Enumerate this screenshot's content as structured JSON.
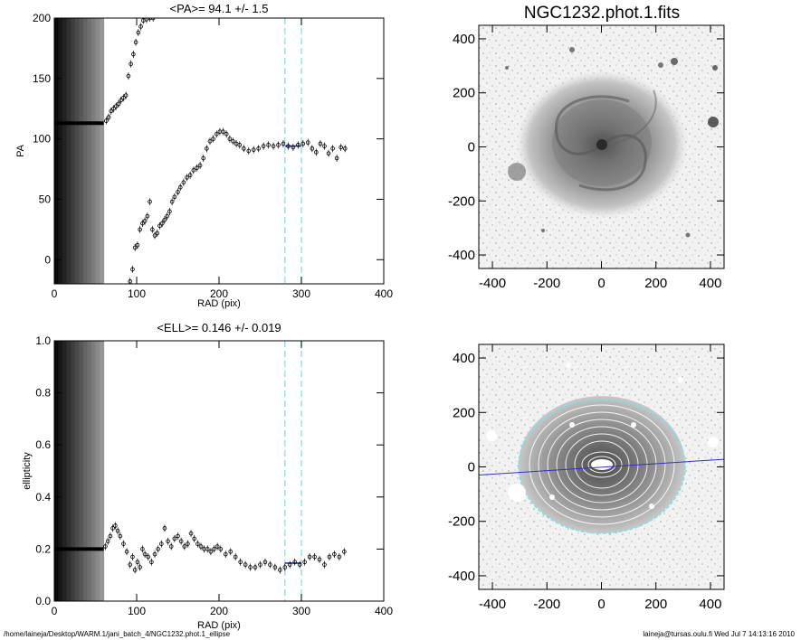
{
  "chart_data": [
    {
      "type": "scatter",
      "title": "<PA>=  94.1 +/-   1.5",
      "xlabel": "RAD (pix)",
      "ylabel": "PA",
      "xlim": [
        0,
        400
      ],
      "ylim": [
        -20,
        200
      ],
      "xticks": [
        "0",
        "100",
        "200",
        "300",
        "400"
      ],
      "yticks": [
        "0",
        "50",
        "100",
        "150",
        "200"
      ],
      "vlines": [
        280,
        300
      ],
      "mean_segment": {
        "x": [
          280,
          300
        ],
        "y": 94.1
      },
      "saturated_region_x": [
        0,
        60
      ],
      "flat_band": {
        "x": [
          0,
          60
        ],
        "y": 113
      },
      "series": [
        {
          "x": [
            63,
            66,
            69,
            72,
            75,
            78,
            81,
            84,
            87,
            90,
            93,
            96,
            99,
            102,
            105,
            108,
            112,
            116,
            120
          ],
          "y": [
            115,
            118,
            123,
            125,
            127,
            129,
            132,
            134,
            136,
            152,
            162,
            170,
            180,
            188,
            193,
            198,
            199,
            200,
            200
          ]
        },
        {
          "x": [
            92,
            95,
            98,
            101,
            104,
            107,
            110,
            113,
            116,
            119,
            122,
            125,
            128,
            131,
            134,
            137,
            140,
            143,
            146,
            150,
            153,
            157,
            161,
            165,
            169,
            173,
            177,
            181,
            185,
            189,
            193,
            197,
            201,
            205,
            209,
            213,
            217,
            221,
            225,
            230,
            236,
            242,
            248,
            254,
            260,
            266,
            272,
            278,
            284,
            290,
            296,
            302,
            308,
            313,
            318,
            323,
            328,
            333,
            338,
            343,
            348,
            353
          ],
          "y": [
            -18,
            -8,
            10,
            12,
            25,
            30,
            32,
            36,
            48,
            25,
            20,
            22,
            28,
            30,
            33,
            36,
            40,
            48,
            52,
            56,
            60,
            64,
            68,
            70,
            74,
            76,
            78,
            84,
            92,
            98,
            100,
            104,
            106,
            106,
            104,
            100,
            98,
            96,
            95,
            92,
            90,
            91,
            92,
            94,
            95,
            94,
            95,
            96,
            94,
            93,
            95,
            96,
            97,
            92,
            89,
            96,
            94,
            88,
            92,
            84,
            93,
            92
          ]
        }
      ]
    },
    {
      "type": "image",
      "title": "NGC1232.phot.1.fits",
      "xlim": [
        -450,
        450
      ],
      "ylim": [
        -450,
        450
      ],
      "xticks": [
        "-400",
        "-200",
        "0",
        "200",
        "400"
      ],
      "yticks": [
        "-400",
        "-200",
        "0",
        "200",
        "400"
      ]
    },
    {
      "type": "scatter",
      "title": "<ELL>= 0.146 +/-  0.019",
      "xlabel": "RAD (pix)",
      "ylabel": "ellipticity",
      "xlim": [
        0,
        400
      ],
      "ylim": [
        0.0,
        1.0
      ],
      "xticks": [
        "0",
        "100",
        "200",
        "300",
        "400"
      ],
      "yticks": [
        "0.0",
        "0.2",
        "0.4",
        "0.6",
        "0.8",
        "1.0"
      ],
      "vlines": [
        280,
        300
      ],
      "mean_segment": {
        "x": [
          280,
          300
        ],
        "y": 0.146
      },
      "saturated_region_x": [
        0,
        60
      ],
      "flat_band": {
        "x": [
          0,
          60
        ],
        "y": 0.2
      },
      "series": [
        {
          "x": [
            62,
            65,
            68,
            71,
            74,
            77,
            80,
            84,
            88,
            92,
            95,
            98,
            101,
            104,
            107,
            110,
            114,
            118,
            122,
            126,
            130,
            134,
            138,
            142,
            146,
            150,
            154,
            158,
            162,
            166,
            170,
            174,
            178,
            182,
            186,
            190,
            194,
            198,
            202,
            208,
            214,
            220,
            226,
            232,
            238,
            244,
            250,
            256,
            262,
            268,
            274,
            280,
            286,
            292,
            298,
            304,
            310,
            316,
            322,
            328,
            334,
            340,
            346,
            352
          ],
          "y": [
            0.21,
            0.23,
            0.25,
            0.28,
            0.29,
            0.27,
            0.25,
            0.22,
            0.19,
            0.14,
            0.17,
            0.12,
            0.15,
            0.13,
            0.2,
            0.18,
            0.17,
            0.15,
            0.18,
            0.2,
            0.22,
            0.28,
            0.23,
            0.21,
            0.24,
            0.25,
            0.23,
            0.21,
            0.22,
            0.26,
            0.24,
            0.22,
            0.21,
            0.2,
            0.2,
            0.19,
            0.2,
            0.21,
            0.2,
            0.18,
            0.19,
            0.17,
            0.15,
            0.14,
            0.13,
            0.13,
            0.14,
            0.15,
            0.14,
            0.13,
            0.12,
            0.13,
            0.14,
            0.15,
            0.14,
            0.15,
            0.17,
            0.17,
            0.16,
            0.14,
            0.17,
            0.18,
            0.17,
            0.19
          ]
        }
      ]
    },
    {
      "type": "image",
      "title": "",
      "xlim": [
        -450,
        450
      ],
      "ylim": [
        -450,
        450
      ],
      "xticks": [
        "-400",
        "-200",
        "0",
        "200",
        "400"
      ],
      "yticks": [
        "-400",
        "-200",
        "0",
        "200",
        "400"
      ],
      "line": {
        "x": [
          -450,
          450
        ],
        "y": [
          -30,
          28
        ]
      }
    }
  ],
  "footer": {
    "path": "/home/laineja/Desktop/WARM.1/jani_batch_4/NGC1232.phot.1_ellipse",
    "user_time": "laineja@tursas.oulu.fi  Wed Jul  7 14:13:16 2010"
  },
  "colors": {
    "vline": "#7ee0e0",
    "mean": "#3030c0",
    "marker": "#000000"
  }
}
